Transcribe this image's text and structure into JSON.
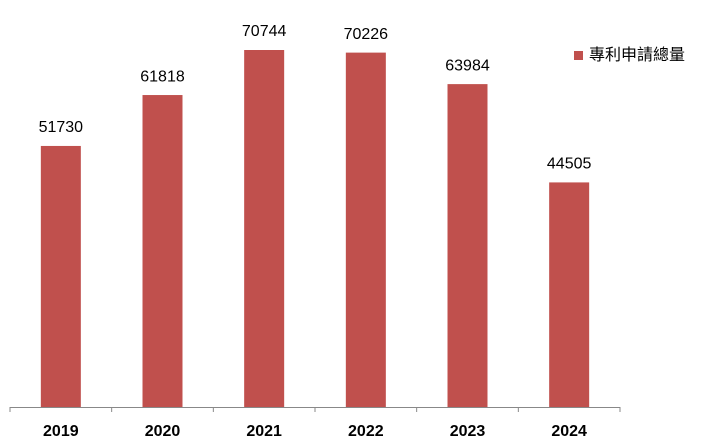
{
  "chart_data": {
    "type": "bar",
    "categories": [
      "2019",
      "2020",
      "2021",
      "2022",
      "2023",
      "2024"
    ],
    "series": [
      {
        "name": "專利申請總量",
        "color": "#c0504d",
        "values": [
          51730,
          61818,
          70744,
          70226,
          63984,
          44505
        ]
      }
    ],
    "legend": "right"
  }
}
